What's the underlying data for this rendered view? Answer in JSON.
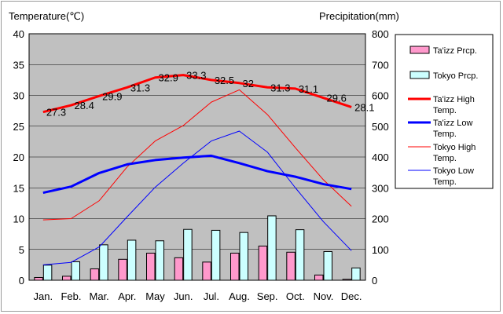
{
  "chart_data": {
    "type": "bar",
    "title": "",
    "ylabel_left": "Temperature(℃)",
    "ylabel_right": "Precipitation(mm)",
    "categories": [
      "Jan.",
      "Feb.",
      "Mar.",
      "Apr.",
      "May",
      "Jun.",
      "Jul.",
      "Aug.",
      "Sep.",
      "Oct.",
      "Nov.",
      "Dec."
    ],
    "ylim_left": [
      0,
      40
    ],
    "ylim_right": [
      0,
      800
    ],
    "yticks_left": [
      "0",
      "5",
      "10",
      "15",
      "20",
      "25",
      "30",
      "35",
      "40"
    ],
    "yticks_right": [
      "0",
      "100",
      "200",
      "300",
      "400",
      "500",
      "600",
      "700",
      "800"
    ],
    "grid": "horizontal",
    "legend_position": "right",
    "bar_series": [
      {
        "name": "Ta'izz Prcp.",
        "axis": "right",
        "color": "#ff99cc",
        "values": [
          9,
          13,
          37,
          68,
          88,
          73,
          59,
          88,
          111,
          91,
          17,
          3
        ]
      },
      {
        "name": "Tokyo Prcp.",
        "axis": "right",
        "color": "#ccffff",
        "values": [
          49,
          60,
          115,
          130,
          128,
          165,
          162,
          155,
          209,
          164,
          93,
          40
        ]
      }
    ],
    "line_series": [
      {
        "name": "Ta'izz High Temp.",
        "axis": "left",
        "color": "#ff0000",
        "width": 3,
        "labeled": true,
        "values": [
          27.3,
          28.4,
          29.9,
          31.3,
          32.9,
          33.3,
          32.5,
          32,
          31.3,
          31.1,
          29.6,
          28.1
        ]
      },
      {
        "name": "Ta'izz Low Temp.",
        "axis": "left",
        "color": "#0000ff",
        "width": 3,
        "labeled": false,
        "values": [
          14.2,
          15.2,
          17.4,
          18.8,
          19.5,
          19.9,
          20.2,
          19,
          17.7,
          16.8,
          15.6,
          14.8
        ]
      },
      {
        "name": "Tokyo High Temp.",
        "axis": "left",
        "color": "#ff0000",
        "width": 1,
        "labeled": false,
        "values": [
          9.8,
          10,
          12.9,
          18.4,
          22.6,
          25.1,
          28.9,
          30.9,
          26.9,
          21.5,
          16.3,
          12
        ]
      },
      {
        "name": "Tokyo Low Temp.",
        "axis": "left",
        "color": "#0000ff",
        "width": 1,
        "labeled": false,
        "values": [
          2.5,
          2.9,
          5.4,
          10.3,
          15.1,
          19,
          22.6,
          24.2,
          20.8,
          15,
          9.5,
          4.8
        ]
      }
    ],
    "data_labels": [
      "27.3",
      "28.4",
      "29.9",
      "31.3",
      "32.9",
      "33.3",
      "32.5",
      "32",
      "31.3",
      "31.1",
      "29.6",
      "28.1"
    ]
  }
}
